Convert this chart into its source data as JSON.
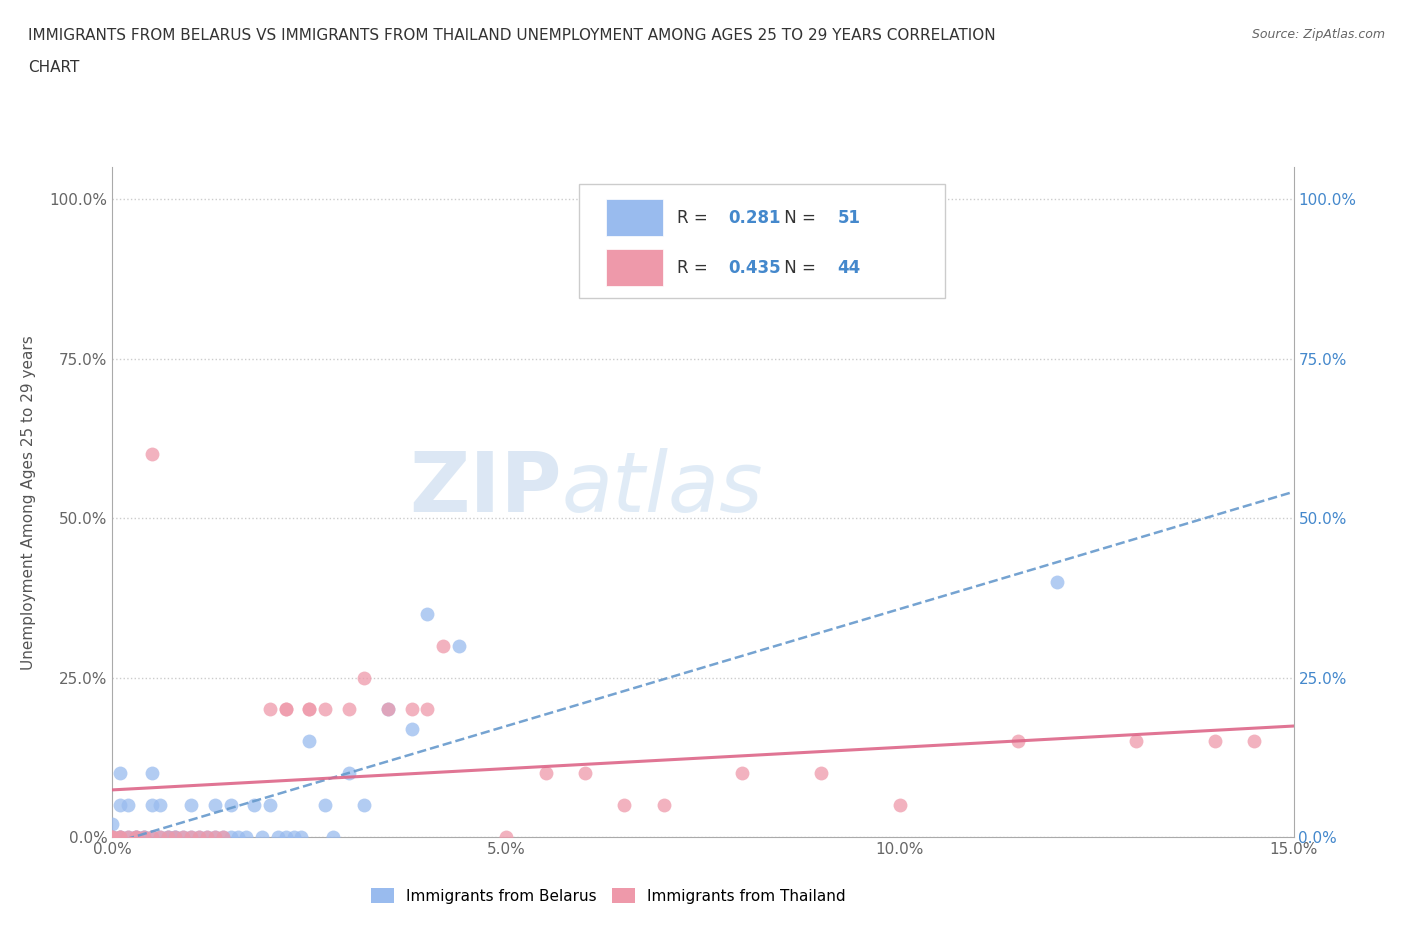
{
  "title_line1": "IMMIGRANTS FROM BELARUS VS IMMIGRANTS FROM THAILAND UNEMPLOYMENT AMONG AGES 25 TO 29 YEARS CORRELATION",
  "title_line2": "CHART",
  "source": "Source: ZipAtlas.com",
  "ylabel": "Unemployment Among Ages 25 to 29 years",
  "xlim": [
    0.0,
    0.15
  ],
  "ylim": [
    0.0,
    1.05
  ],
  "yticks": [
    0.0,
    0.25,
    0.5,
    0.75,
    1.0
  ],
  "xticks": [
    0.0,
    0.05,
    0.1,
    0.15
  ],
  "color_belarus": "#99bbee",
  "color_thailand": "#ee99aa",
  "legend_r_belarus": "0.281",
  "legend_n_belarus": "51",
  "legend_r_thailand": "0.435",
  "legend_n_thailand": "44",
  "trendline_belarus_color": "#6699cc",
  "trendline_thailand_color": "#dd6688",
  "bg_color": "#ffffff",
  "grid_color": "#cccccc",
  "belarus_x": [
    0.0,
    0.0,
    0.0,
    0.001,
    0.001,
    0.001,
    0.001,
    0.002,
    0.002,
    0.003,
    0.003,
    0.004,
    0.004,
    0.005,
    0.005,
    0.005,
    0.006,
    0.006,
    0.007,
    0.007,
    0.008,
    0.008,
    0.009,
    0.01,
    0.01,
    0.011,
    0.012,
    0.013,
    0.013,
    0.014,
    0.015,
    0.015,
    0.016,
    0.017,
    0.018,
    0.019,
    0.02,
    0.021,
    0.022,
    0.023,
    0.024,
    0.025,
    0.027,
    0.028,
    0.03,
    0.032,
    0.035,
    0.038,
    0.04,
    0.044,
    0.12
  ],
  "belarus_y": [
    0.0,
    0.0,
    0.02,
    0.0,
    0.0,
    0.05,
    0.1,
    0.0,
    0.05,
    0.0,
    0.0,
    0.0,
    0.0,
    0.0,
    0.05,
    0.1,
    0.0,
    0.05,
    0.0,
    0.0,
    0.0,
    0.0,
    0.0,
    0.0,
    0.05,
    0.0,
    0.0,
    0.0,
    0.05,
    0.0,
    0.0,
    0.05,
    0.0,
    0.0,
    0.05,
    0.0,
    0.05,
    0.0,
    0.0,
    0.0,
    0.0,
    0.15,
    0.05,
    0.0,
    0.1,
    0.05,
    0.2,
    0.17,
    0.35,
    0.3,
    0.4
  ],
  "thailand_x": [
    0.0,
    0.0,
    0.0,
    0.001,
    0.001,
    0.002,
    0.003,
    0.003,
    0.004,
    0.005,
    0.005,
    0.006,
    0.007,
    0.008,
    0.009,
    0.01,
    0.011,
    0.012,
    0.013,
    0.014,
    0.02,
    0.022,
    0.022,
    0.025,
    0.025,
    0.027,
    0.03,
    0.032,
    0.035,
    0.038,
    0.04,
    0.042,
    0.05,
    0.055,
    0.06,
    0.065,
    0.07,
    0.08,
    0.09,
    0.1,
    0.115,
    0.13,
    0.14,
    0.145
  ],
  "thailand_y": [
    0.0,
    0.0,
    0.0,
    0.0,
    0.0,
    0.0,
    0.0,
    0.0,
    0.0,
    0.0,
    0.6,
    0.0,
    0.0,
    0.0,
    0.0,
    0.0,
    0.0,
    0.0,
    0.0,
    0.0,
    0.2,
    0.2,
    0.2,
    0.2,
    0.2,
    0.2,
    0.2,
    0.25,
    0.2,
    0.2,
    0.2,
    0.3,
    0.0,
    0.1,
    0.1,
    0.05,
    0.05,
    0.1,
    0.1,
    0.05,
    0.15,
    0.15,
    0.15,
    0.15
  ]
}
